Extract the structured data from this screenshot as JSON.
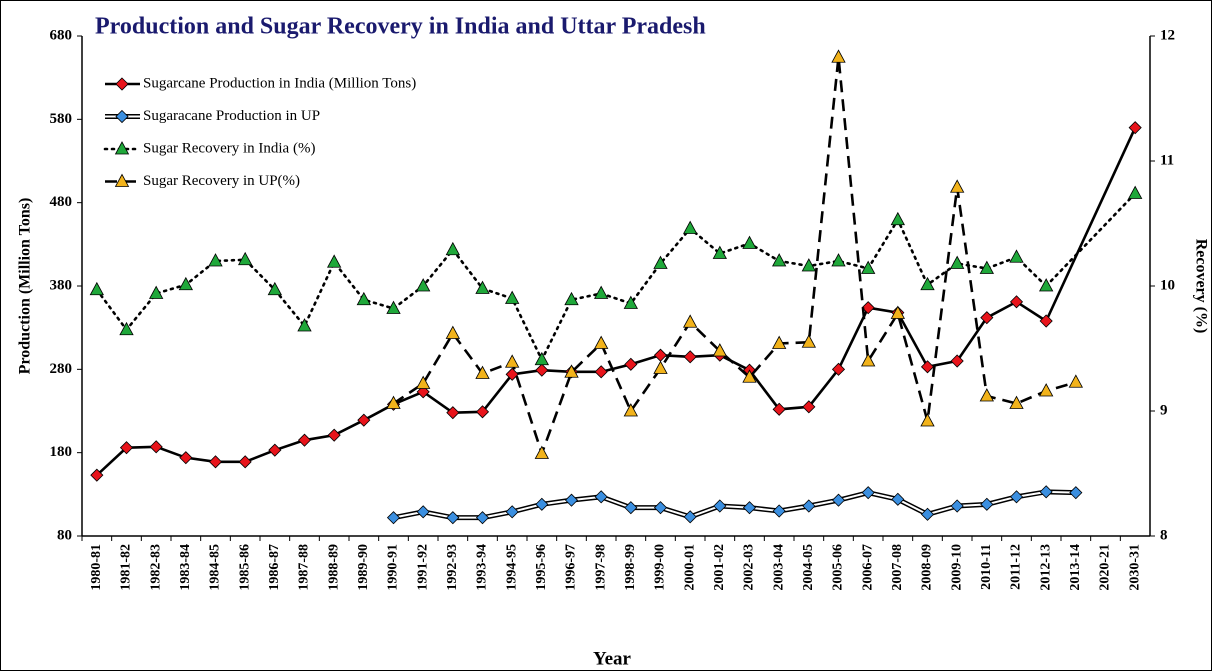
{
  "chart_data": {
    "type": "line",
    "title": "Production and Sugar Recovery in India and Uttar Pradesh",
    "x_label": "Year",
    "y_label": "Production (Million  Tons)",
    "y2_label": "Recovery (%)",
    "categories": [
      "1980-81",
      "1981-82",
      "1982-83",
      "1983-84",
      "1984-85",
      "1985-86",
      "1986-87",
      "1987-88",
      "1988-89",
      "1989-90",
      "1990-91",
      "1991-92",
      "1992-93",
      "1993-94",
      "1994-95",
      "1995-96",
      "1996-97",
      "1997-98",
      "1998-99",
      "1999-00",
      "2000-01",
      "2001-02",
      "2002-03",
      "2003-04",
      "2004-05",
      "2005-06",
      "2006-07",
      "2007-08",
      "2008-09",
      "2009-10",
      "2010-11",
      "2011-12",
      "2012-13",
      "2013-14",
      "2020-21",
      "2030-31"
    ],
    "ylim": [
      80,
      680
    ],
    "yticks": [
      80,
      180,
      280,
      380,
      480,
      580,
      680
    ],
    "y2lim": [
      8,
      12
    ],
    "y2ticks": [
      8,
      9,
      10,
      11,
      12
    ],
    "grid": false,
    "legend": "upper left",
    "series": [
      {
        "name": "Sugarcane Production in India (Million  Tons)",
        "color": "#e8141b",
        "line_color": "#000000",
        "style": "solid",
        "marker": "diamond",
        "span_gaps": true,
        "values": [
          153,
          186,
          187,
          174,
          169,
          169,
          183,
          195,
          201,
          219,
          238,
          253,
          228,
          229,
          274,
          279,
          277,
          277,
          286,
          297,
          295,
          297,
          279,
          232,
          235,
          280,
          354,
          348,
          283,
          290,
          342,
          361,
          338,
          null,
          null,
          570
        ]
      },
      {
        "name": "Sugaracane Production in UP",
        "color": "#3b8fe0",
        "line_color": "#000000",
        "style": "double",
        "marker": "diamond",
        "span_gaps": false,
        "values": [
          null,
          null,
          null,
          null,
          null,
          null,
          null,
          null,
          null,
          null,
          102,
          109,
          102,
          102,
          109,
          118,
          123,
          127,
          114,
          114,
          103,
          116,
          114,
          110,
          116,
          123,
          132,
          124,
          106,
          116,
          118,
          127,
          133,
          132,
          null,
          null
        ]
      },
      {
        "name": "Sugar Recovery in India (%)",
        "color": "#1fa83a",
        "line_color": "#000000",
        "style": "dotted",
        "marker": "triangle",
        "axis": "y2",
        "span_gaps": true,
        "values": [
          9.97,
          9.65,
          9.94,
          10.01,
          10.2,
          10.21,
          9.97,
          9.68,
          10.19,
          9.89,
          9.82,
          10.0,
          10.29,
          9.98,
          9.9,
          9.41,
          9.89,
          9.94,
          9.86,
          10.18,
          10.46,
          10.26,
          10.34,
          10.2,
          10.16,
          10.2,
          10.14,
          10.53,
          10.01,
          10.18,
          10.14,
          10.23,
          10.0,
          null,
          null,
          10.74
        ]
      },
      {
        "name": "Sugar Recovery in UP(%)",
        "color": "#f2b31b",
        "line_color": "#000000",
        "style": "dashed",
        "marker": "triangle",
        "axis": "y2",
        "span_gaps": false,
        "values": [
          null,
          null,
          null,
          null,
          null,
          null,
          null,
          null,
          null,
          null,
          9.06,
          9.22,
          9.62,
          9.3,
          9.39,
          8.66,
          9.31,
          9.54,
          9.0,
          9.34,
          9.71,
          9.48,
          9.27,
          9.54,
          9.55,
          11.83,
          9.4,
          9.78,
          8.92,
          10.79,
          9.12,
          9.06,
          9.16,
          9.23,
          null,
          null
        ]
      }
    ]
  }
}
